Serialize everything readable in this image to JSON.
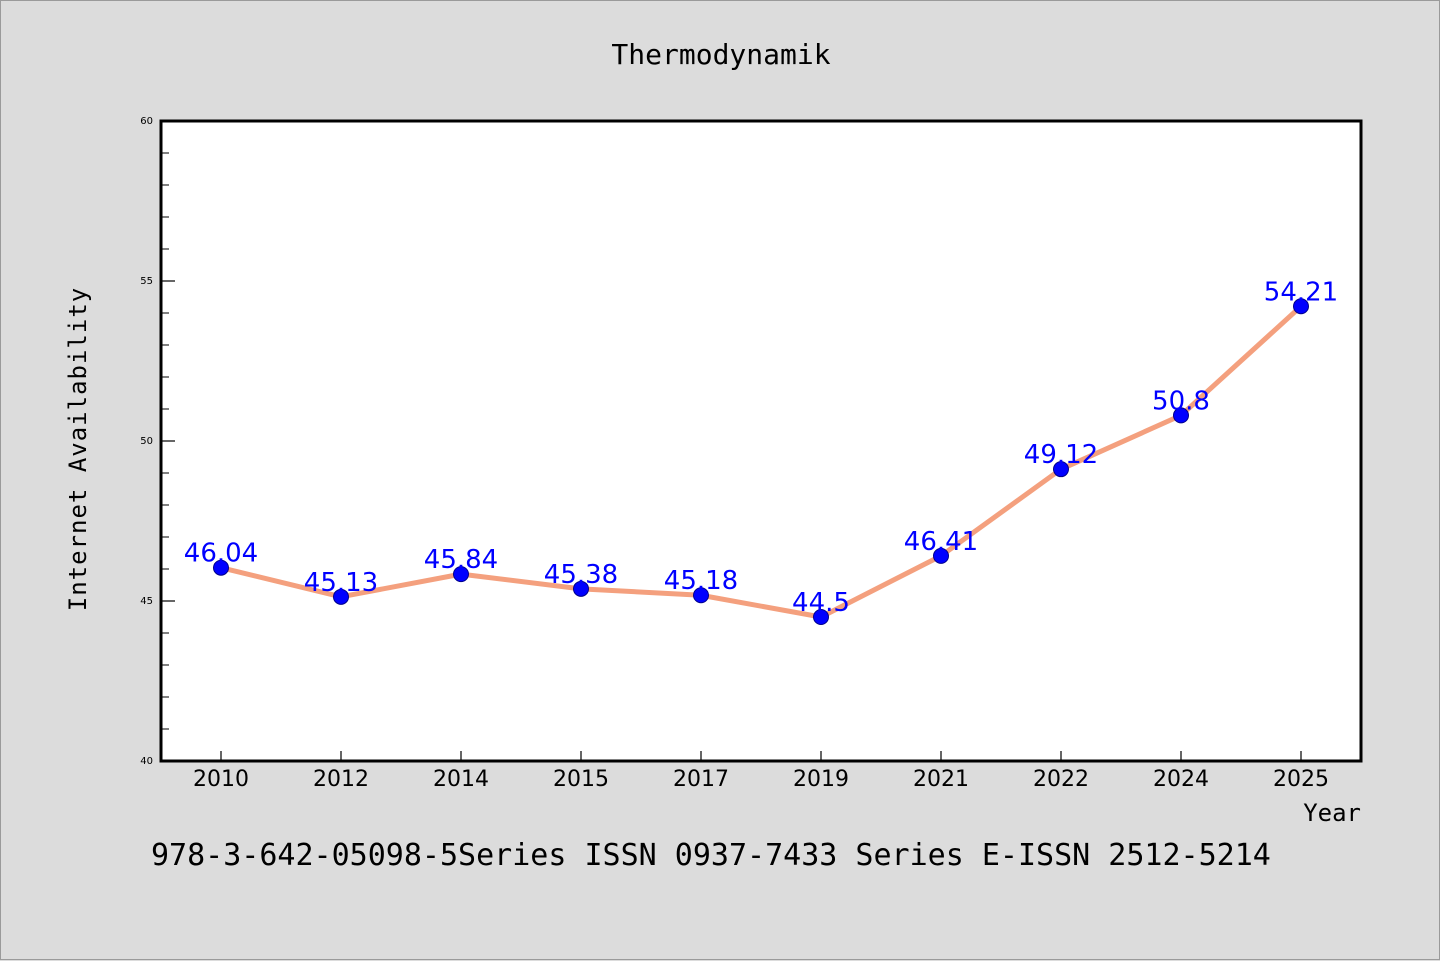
{
  "chart_data": {
    "type": "line",
    "title": "Thermodynamik",
    "xlabel": "Year",
    "ylabel": "Internet Availability",
    "categories": [
      "2010",
      "2012",
      "2014",
      "2015",
      "2017",
      "2019",
      "2021",
      "2022",
      "2024",
      "2025"
    ],
    "series": [
      {
        "values": [
          46.04,
          45.13,
          45.84,
          45.38,
          45.18,
          44.5,
          46.41,
          49.12,
          50.8,
          54.21
        ],
        "labels": [
          "46.04",
          "45.13",
          "45.84",
          "45.38",
          "45.18",
          "44.5",
          "46.41",
          "49.12",
          "50.8",
          "54.21"
        ]
      }
    ],
    "ylim": [
      40,
      60
    ],
    "yticks": [
      40,
      45,
      50,
      55,
      60
    ],
    "grid": false,
    "colors": {
      "line": "#f4a07e",
      "marker": "#0000ff",
      "label": "#0000ff",
      "plot_background": "#ffffff",
      "figure_background": "#dcdcdc"
    }
  },
  "footer": {
    "text": "978-3-642-05098-5Series ISSN 0937-7433 Series E-ISSN 2512-5214"
  }
}
